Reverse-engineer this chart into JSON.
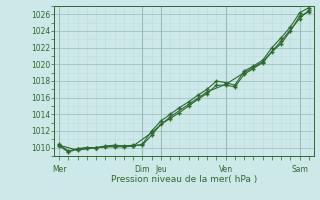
{
  "title": "",
  "xlabel": "Pression niveau de la mer( hPa )",
  "ylabel": "",
  "ylim": [
    1009,
    1027
  ],
  "yticks": [
    1010,
    1012,
    1014,
    1016,
    1018,
    1020,
    1022,
    1024,
    1026
  ],
  "bg_color": "#cce8e8",
  "grid_color_major": "#99bbbb",
  "grid_color_minor": "#bbdddd",
  "line_color": "#2d6a2d",
  "day_labels": [
    "Mer",
    "Dim",
    "Jeu",
    "Ven",
    "Sam"
  ],
  "day_tick_positions": [
    0,
    9,
    11,
    18,
    26
  ],
  "n_points": 28,
  "series1_x": [
    0,
    1,
    2,
    3,
    4,
    5,
    6,
    7,
    8,
    9,
    10,
    11,
    12,
    13,
    14,
    15,
    16,
    17,
    18,
    19,
    20,
    21,
    22,
    23,
    24,
    25,
    26,
    27
  ],
  "series1": [
    1010.2,
    1009.5,
    1009.8,
    1010.0,
    1010.0,
    1010.2,
    1010.3,
    1010.2,
    1010.3,
    1010.3,
    1011.5,
    1012.8,
    1013.5,
    1014.2,
    1015.0,
    1015.8,
    1016.5,
    1017.5,
    1017.5,
    1017.3,
    1018.8,
    1019.5,
    1020.2,
    1021.5,
    1022.5,
    1024.0,
    1025.8,
    1026.3
  ],
  "series2_x": [
    0,
    1,
    2,
    3,
    4,
    5,
    6,
    7,
    8,
    9,
    10,
    11,
    12,
    13,
    14,
    15,
    16,
    17,
    18,
    19,
    20,
    21,
    22,
    23,
    24,
    25,
    26,
    27
  ],
  "series2": [
    1010.4,
    1009.6,
    1009.9,
    1010.0,
    1010.0,
    1010.1,
    1010.1,
    1010.1,
    1010.2,
    1010.4,
    1012.0,
    1013.2,
    1014.0,
    1014.8,
    1015.5,
    1016.3,
    1017.0,
    1018.0,
    1017.8,
    1017.5,
    1019.2,
    1019.8,
    1020.5,
    1022.0,
    1023.2,
    1024.5,
    1026.2,
    1026.8
  ],
  "series3_x": [
    0,
    2,
    4,
    6,
    8,
    10,
    12,
    14,
    16,
    18,
    20,
    22,
    24,
    26,
    27
  ],
  "series3": [
    1010.3,
    1009.7,
    1010.0,
    1010.2,
    1010.2,
    1011.8,
    1013.7,
    1015.2,
    1016.7,
    1017.6,
    1019.0,
    1020.3,
    1022.8,
    1025.5,
    1026.5
  ]
}
